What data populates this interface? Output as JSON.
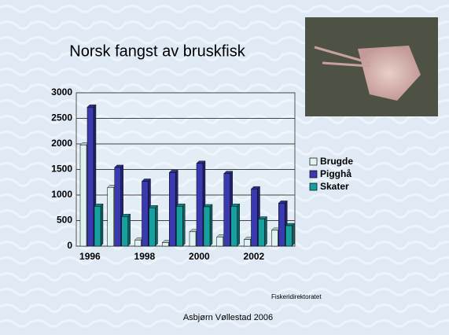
{
  "chart_data": {
    "type": "bar",
    "title": "Norsk fangst av bruskfisk",
    "categories": [
      "1996",
      null,
      "1998",
      null,
      "2000",
      null,
      "2002",
      null
    ],
    "series": [
      {
        "name": "Brugde",
        "color": "#dff4f2",
        "values": [
          1980,
          1150,
          120,
          70,
          280,
          180,
          130,
          310
        ]
      },
      {
        "name": "Pigghå",
        "color": "#3a3ab0",
        "values": [
          2720,
          1540,
          1270,
          1440,
          1620,
          1420,
          1120,
          840
        ]
      },
      {
        "name": "Skater",
        "color": "#17a0a0",
        "values": [
          780,
          580,
          750,
          780,
          770,
          780,
          530,
          400
        ]
      }
    ],
    "ylim": [
      0,
      3000
    ],
    "yticks": [
      0,
      500,
      1000,
      1500,
      2000,
      2500,
      3000
    ],
    "grid": true,
    "source": "Fiskeridirektoratet",
    "author": "Asbjørn Vøllestad 2006"
  }
}
